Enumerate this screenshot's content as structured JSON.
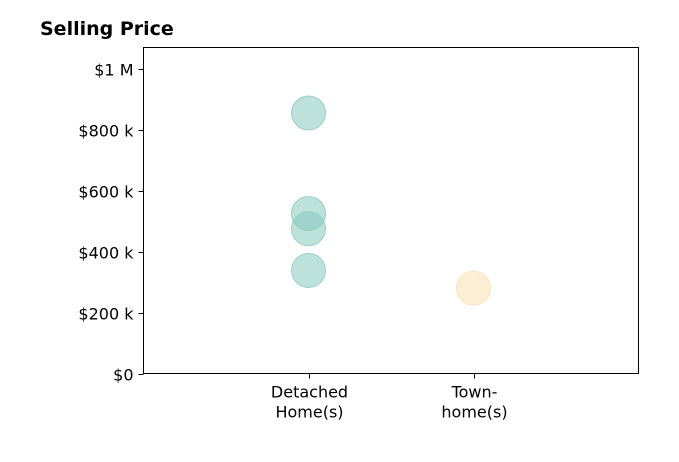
{
  "chart_data": {
    "type": "scatter",
    "title": "Selling Price",
    "xlabel": "",
    "ylabel": "",
    "categories": [
      "Detached Home(s)",
      "Town- home(s)"
    ],
    "category_tick_lines": [
      [
        "Detached",
        "Home(s)"
      ],
      [
        "Town-",
        "home(s)"
      ]
    ],
    "y_ticks": [
      {
        "value": 0,
        "label": "$0"
      },
      {
        "value": 200000,
        "label": "$200 k"
      },
      {
        "value": 400000,
        "label": "$400 k"
      },
      {
        "value": 600000,
        "label": "$600 k"
      },
      {
        "value": 800000,
        "label": "$800 k"
      },
      {
        "value": 1000000,
        "label": "$1 M"
      }
    ],
    "ylim": [
      0,
      1070000
    ],
    "xlim": [
      -1,
      2
    ],
    "grid": false,
    "legend": "none",
    "colors": {
      "Detached Home(s)": "#86c8be",
      "Town- home(s)": "#f7e0b0"
    },
    "points": [
      {
        "category": "Detached Home(s)",
        "value": 855000
      },
      {
        "category": "Detached Home(s)",
        "value": 525000
      },
      {
        "category": "Detached Home(s)",
        "value": 475000
      },
      {
        "category": "Detached Home(s)",
        "value": 338000
      },
      {
        "category": "Town- home(s)",
        "value": 280000
      }
    ]
  }
}
